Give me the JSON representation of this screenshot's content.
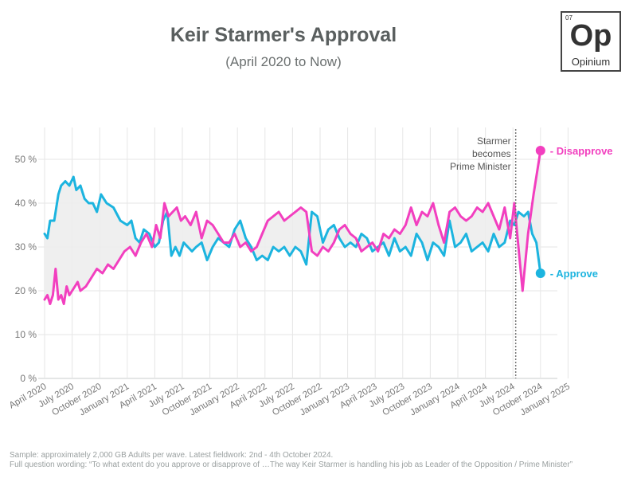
{
  "header": {
    "title": "Keir Starmer's Approval",
    "subtitle": "(April 2020 to Now)"
  },
  "logo": {
    "number": "07",
    "symbol": "Op",
    "name": "Opinium"
  },
  "footer": {
    "sample": "Sample: approximately 2,000 GB Adults per wave. Latest fieldwork: 2nd - 4th October 2024.",
    "wording": "Full question wording: “To what extent do you approve or disapprove of …The way Keir Starmer is handling his job as Leader of the Opposition / Prime Minister”"
  },
  "chart_data": {
    "type": "line",
    "x_ticks": [
      "April 2020",
      "July 2020",
      "October 2020",
      "January 2021",
      "April 2021",
      "July 2021",
      "October 2021",
      "January 2022",
      "April 2022",
      "July 2022",
      "October 2022",
      "January 2023",
      "April 2023",
      "July 2023",
      "October 2023",
      "January 2024",
      "April 2024",
      "July 2024",
      "October 2024",
      "January 2025"
    ],
    "y_ticks": [
      "0 %",
      "10 %",
      "20 %",
      "30 %",
      "40 %",
      "50 %"
    ],
    "ylim": [
      0,
      55
    ],
    "x_range_quarters": [
      0,
      19
    ],
    "grid": true,
    "annotation": {
      "text": [
        "Starmer",
        "becomes",
        "Prime Minister"
      ],
      "x_quarter": 17.1
    },
    "series": [
      {
        "name": "Approve",
        "color": "#1cb4df",
        "x": [
          0,
          0.1,
          0.2,
          0.35,
          0.5,
          0.6,
          0.75,
          0.9,
          1.05,
          1.15,
          1.3,
          1.45,
          1.6,
          1.75,
          1.9,
          2.05,
          2.25,
          2.5,
          2.75,
          3.0,
          3.15,
          3.3,
          3.45,
          3.6,
          3.8,
          4.0,
          4.15,
          4.3,
          4.45,
          4.6,
          4.75,
          4.9,
          5.05,
          5.2,
          5.35,
          5.5,
          5.7,
          5.9,
          6.1,
          6.3,
          6.5,
          6.7,
          6.9,
          7.1,
          7.3,
          7.5,
          7.7,
          7.9,
          8.1,
          8.3,
          8.5,
          8.7,
          8.9,
          9.1,
          9.3,
          9.5,
          9.7,
          9.9,
          10.1,
          10.3,
          10.5,
          10.7,
          10.9,
          11.1,
          11.3,
          11.5,
          11.7,
          11.9,
          12.1,
          12.3,
          12.5,
          12.7,
          12.9,
          13.1,
          13.3,
          13.5,
          13.7,
          13.9,
          14.1,
          14.3,
          14.5,
          14.7,
          14.9,
          15.1,
          15.3,
          15.5,
          15.7,
          15.9,
          16.1,
          16.3,
          16.5,
          16.7,
          16.9,
          17.05,
          17.2,
          17.4,
          17.55,
          17.7,
          17.85,
          18.0
        ],
        "values": [
          33,
          32,
          36,
          36,
          42,
          44,
          45,
          44,
          46,
          43,
          44,
          41,
          40,
          40,
          38,
          42,
          40,
          39,
          36,
          35,
          36,
          32,
          31,
          34,
          33,
          30,
          31,
          36,
          38,
          28,
          30,
          28,
          31,
          30,
          29,
          30,
          31,
          27,
          30,
          32,
          31,
          30,
          34,
          36,
          32,
          30,
          27,
          28,
          27,
          30,
          29,
          30,
          28,
          30,
          29,
          26,
          38,
          37,
          31,
          34,
          35,
          32,
          30,
          31,
          30,
          33,
          32,
          29,
          30,
          31,
          28,
          32,
          29,
          30,
          28,
          33,
          31,
          27,
          31,
          30,
          28,
          36,
          30,
          31,
          33,
          29,
          30,
          31,
          29,
          33,
          30,
          31,
          36,
          35,
          38,
          37,
          38,
          33,
          31,
          24
        ]
      },
      {
        "name": "Disapprove",
        "color": "#f23fbf",
        "x": [
          0,
          0.1,
          0.2,
          0.3,
          0.4,
          0.5,
          0.6,
          0.7,
          0.8,
          0.9,
          1.0,
          1.1,
          1.2,
          1.3,
          1.5,
          1.7,
          1.9,
          2.1,
          2.3,
          2.5,
          2.7,
          2.9,
          3.1,
          3.3,
          3.5,
          3.7,
          3.9,
          4.05,
          4.2,
          4.35,
          4.5,
          4.65,
          4.8,
          4.95,
          5.1,
          5.3,
          5.5,
          5.7,
          5.9,
          6.1,
          6.3,
          6.5,
          6.7,
          6.9,
          7.1,
          7.3,
          7.5,
          7.7,
          7.9,
          8.1,
          8.3,
          8.5,
          8.7,
          8.9,
          9.1,
          9.3,
          9.5,
          9.7,
          9.9,
          10.1,
          10.3,
          10.5,
          10.7,
          10.9,
          11.1,
          11.3,
          11.5,
          11.7,
          11.9,
          12.1,
          12.3,
          12.5,
          12.7,
          12.9,
          13.1,
          13.3,
          13.5,
          13.7,
          13.9,
          14.1,
          14.3,
          14.5,
          14.7,
          14.9,
          15.1,
          15.3,
          15.5,
          15.7,
          15.9,
          16.1,
          16.3,
          16.5,
          16.7,
          16.9,
          17.05,
          17.2,
          17.35,
          17.55,
          17.75,
          18.0
        ],
        "values": [
          18,
          19,
          17,
          19,
          25,
          18,
          19,
          17,
          21,
          19,
          20,
          21,
          22,
          20,
          21,
          23,
          25,
          24,
          26,
          25,
          27,
          29,
          30,
          28,
          31,
          33,
          30,
          35,
          32,
          40,
          37,
          38,
          39,
          36,
          37,
          35,
          38,
          32,
          36,
          35,
          33,
          31,
          31,
          33,
          30,
          31,
          29,
          30,
          33,
          36,
          37,
          38,
          36,
          37,
          38,
          39,
          38,
          29,
          28,
          30,
          29,
          31,
          34,
          35,
          33,
          32,
          29,
          30,
          31,
          29,
          33,
          32,
          34,
          33,
          35,
          39,
          35,
          38,
          37,
          40,
          35,
          31,
          38,
          39,
          37,
          36,
          37,
          39,
          38,
          40,
          37,
          34,
          39,
          32,
          40,
          30,
          20,
          33,
          42,
          52
        ]
      }
    ],
    "end_labels": [
      "Approve",
      "Disapprove"
    ]
  }
}
